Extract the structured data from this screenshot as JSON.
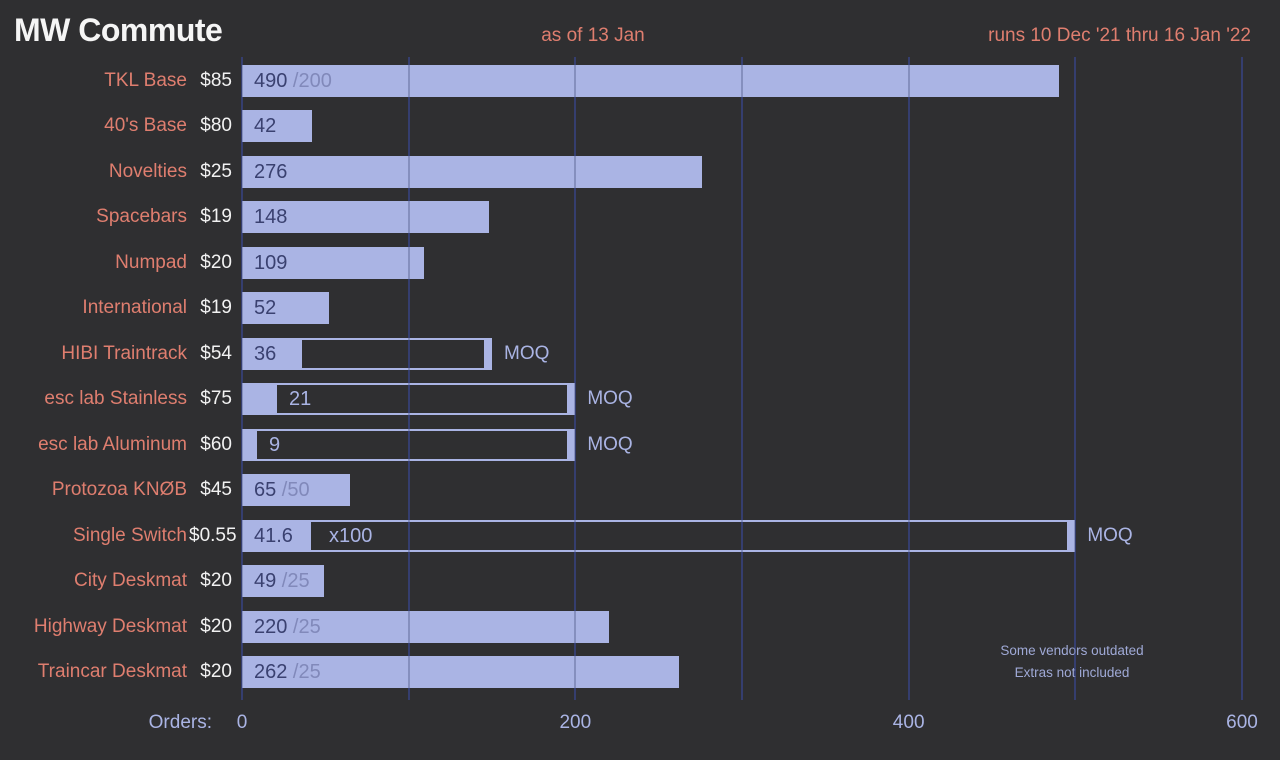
{
  "title": "MW Commute",
  "header": {
    "as_of": "as of 13 Jan",
    "runs": "runs 10 Dec '21 thru 16 Jan '22"
  },
  "axis": {
    "caption": "Orders:",
    "tick_labels": [
      "0",
      "200",
      "400",
      "600"
    ],
    "tick_values": [
      0,
      200,
      400,
      600
    ]
  },
  "footnote": {
    "line1": "Some vendors outdated",
    "line2": "Extras not included"
  },
  "moq_text": "MOQ",
  "colors": {
    "background": "#2f2f31",
    "bar_fill": "#aab4e4",
    "bar_value_text": "#3a4170",
    "goal_text": "#8189ba",
    "item_label": "#df7e6f",
    "price_text": "#f2f2f2",
    "gridline": "#3b4577",
    "axis_text": "#aab4e4",
    "title_text": "#f5f5f5"
  },
  "chart_data": {
    "type": "bar",
    "orientation": "horizontal",
    "title": "MW Commute",
    "xlabel": "Orders",
    "xlim": [
      0,
      600
    ],
    "gridline_values": [
      0,
      100,
      200,
      300,
      400,
      500,
      600
    ],
    "labeled_ticks": [
      0,
      200,
      400,
      600
    ],
    "legend": "none",
    "rows": [
      {
        "name": "TKL Base",
        "price": "$85",
        "value": 490,
        "value_label": "490",
        "goal_label": "/200"
      },
      {
        "name": "40's Base",
        "price": "$80",
        "value": 42,
        "value_label": "42"
      },
      {
        "name": "Novelties",
        "price": "$25",
        "value": 276,
        "value_label": "276"
      },
      {
        "name": "Spacebars",
        "price": "$19",
        "value": 148,
        "value_label": "148"
      },
      {
        "name": "Numpad",
        "price": "$20",
        "value": 109,
        "value_label": "109"
      },
      {
        "name": "International",
        "price": "$19",
        "value": 52,
        "value_label": "52"
      },
      {
        "name": "HIBI Traintrack",
        "price": "$54",
        "value": 36,
        "value_label": "36",
        "moq": 150,
        "value_inside_fill": true
      },
      {
        "name": "esc lab Stainless",
        "price": "$75",
        "value": 21,
        "value_label": "21",
        "moq": 200,
        "value_inside_fill": false
      },
      {
        "name": "esc lab Aluminum",
        "price": "$60",
        "value": 9,
        "value_label": "9",
        "moq": 200,
        "value_inside_fill": false
      },
      {
        "name": "Protozoa KNØB",
        "price": "$45",
        "value": 65,
        "value_label": "65",
        "goal_label": "/50"
      },
      {
        "name": "Single Switch",
        "price": "$0.55",
        "value": 41.6,
        "value_label": "41.6",
        "moq": 500,
        "value_inside_fill": true,
        "multiplier_label": "x100"
      },
      {
        "name": "City Deskmat",
        "price": "$20",
        "value": 49,
        "value_label": "49",
        "goal_label": "/25"
      },
      {
        "name": "Highway Deskmat",
        "price": "$20",
        "value": 220,
        "value_label": "220",
        "goal_label": "/25"
      },
      {
        "name": "Traincar Deskmat",
        "price": "$20",
        "value": 262,
        "value_label": "262",
        "goal_label": "/25"
      }
    ]
  }
}
